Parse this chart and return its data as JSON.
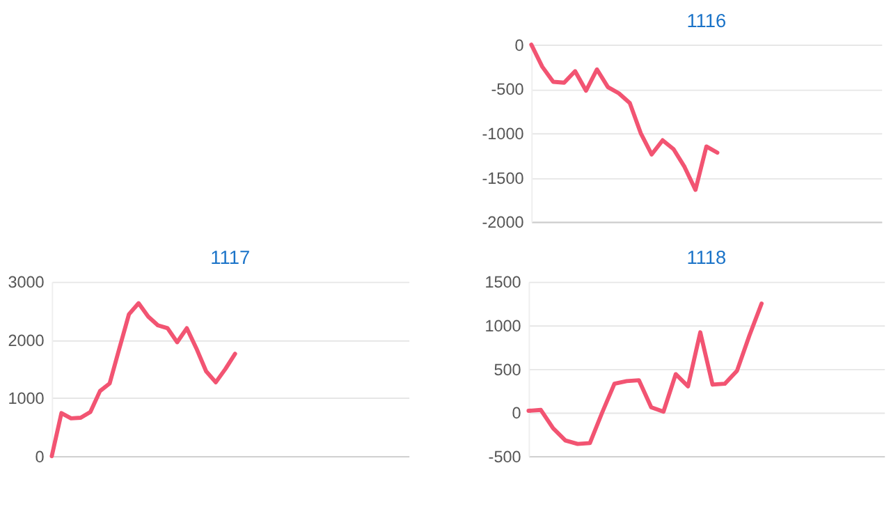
{
  "chart_data": [
    {
      "type": "line",
      "title": "1116",
      "categories": [
        null,
        null,
        null,
        null,
        null,
        null,
        null,
        null,
        null,
        null,
        null,
        null,
        null,
        null,
        null,
        null,
        null,
        null,
        null,
        null,
        null,
        null,
        null,
        null,
        null,
        null,
        null,
        null,
        null,
        null,
        null,
        null,
        null
      ],
      "series": [
        {
          "color": "#f25472",
          "values": [
            0,
            -250,
            -420,
            -430,
            -300,
            -520,
            -280,
            -480,
            -550,
            -660,
            -1000,
            -1240,
            -1080,
            -1180,
            -1380,
            -1640,
            -1150,
            -1220,
            null,
            null,
            null,
            null,
            null,
            null,
            null,
            null,
            null,
            null,
            null,
            null,
            null,
            null,
            null
          ]
        }
      ],
      "ylim": [
        -2000,
        0
      ],
      "yticks": [
        -2000,
        -1500,
        -1000,
        -500,
        0
      ],
      "grid": "y",
      "tick_labels": "y",
      "marker": "none",
      "line_style": "solid"
    },
    {
      "type": "line",
      "title": "1117",
      "categories": [
        null,
        null,
        null,
        null,
        null,
        null,
        null,
        null,
        null,
        null,
        null,
        null,
        null,
        null,
        null,
        null,
        null,
        null,
        null,
        null,
        null,
        null,
        null,
        null,
        null,
        null,
        null,
        null,
        null,
        null,
        null,
        null,
        null,
        null,
        null,
        null,
        null,
        null
      ],
      "series": [
        {
          "color": "#f25472",
          "values": [
            0,
            740,
            650,
            660,
            760,
            1120,
            1250,
            1850,
            2440,
            2630,
            2400,
            2250,
            2200,
            1960,
            2200,
            1850,
            1460,
            1270,
            1500,
            1760,
            null,
            null,
            null,
            null,
            null,
            null,
            null,
            null,
            null,
            null,
            null,
            null,
            null,
            null,
            null,
            null,
            null,
            null
          ]
        }
      ],
      "ylim": [
        0,
        3000
      ],
      "yticks": [
        0,
        1000,
        2000,
        3000
      ],
      "grid": "y",
      "tick_labels": "y",
      "marker": "none",
      "line_style": "solid"
    },
    {
      "type": "line",
      "title": "1118",
      "categories": [
        null,
        null,
        null,
        null,
        null,
        null,
        null,
        null,
        null,
        null,
        null,
        null,
        null,
        null,
        null,
        null,
        null,
        null,
        null,
        null,
        null,
        null,
        null,
        null,
        null,
        null,
        null,
        null,
        null,
        null
      ],
      "series": [
        {
          "color": "#f25472",
          "values": [
            20,
            30,
            -180,
            -320,
            -360,
            -350,
            0,
            330,
            360,
            370,
            60,
            10,
            440,
            300,
            920,
            320,
            330,
            480,
            880,
            1250,
            null,
            null,
            null,
            null,
            null,
            null,
            null,
            null,
            null,
            null
          ]
        }
      ],
      "ylim": [
        -500,
        1500
      ],
      "yticks": [
        -500,
        0,
        500,
        1000,
        1500
      ],
      "grid": "y",
      "tick_labels": "y",
      "marker": "none",
      "line_style": "solid"
    }
  ]
}
